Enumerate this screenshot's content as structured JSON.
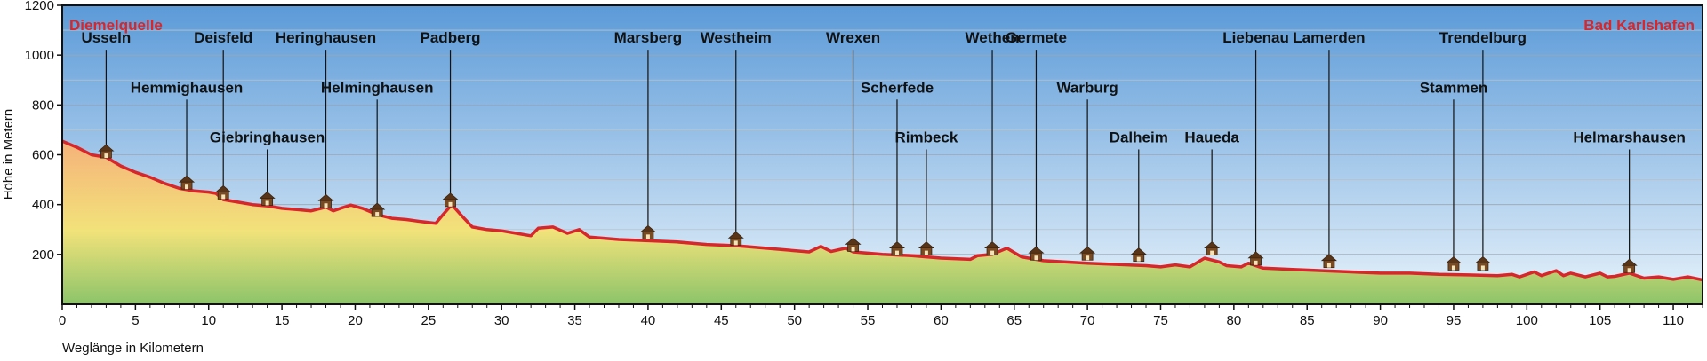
{
  "chart_data": {
    "type": "area",
    "xlabel": "Weglänge in Kilometern",
    "ylabel": "Höhe in Metern",
    "xlim": [
      0,
      112
    ],
    "ylim": [
      0,
      1200
    ],
    "x_ticks": [
      0,
      5,
      10,
      15,
      20,
      25,
      30,
      35,
      40,
      45,
      50,
      55,
      60,
      65,
      70,
      75,
      80,
      85,
      90,
      95,
      100,
      105,
      110
    ],
    "y_ticks": [
      200,
      400,
      600,
      800,
      1000,
      1200
    ],
    "grid": true,
    "start_label": "Diemelquelle",
    "end_label": "Bad Karlshafen",
    "colors": {
      "line": "#d8262b",
      "marker": "#7a4a22",
      "sky_top": "#5b9ad8",
      "sky_bottom": "#e8f3fb",
      "ground_top": "#f5b27a",
      "ground_mid": "#f2e27a",
      "ground_bottom": "#8cc46a"
    },
    "profile": [
      [
        0,
        655
      ],
      [
        1,
        630
      ],
      [
        2,
        600
      ],
      [
        3,
        590
      ],
      [
        4,
        555
      ],
      [
        5,
        530
      ],
      [
        6,
        510
      ],
      [
        7,
        485
      ],
      [
        8,
        465
      ],
      [
        9,
        455
      ],
      [
        10,
        450
      ],
      [
        10.5,
        445
      ],
      [
        11,
        420
      ],
      [
        12,
        410
      ],
      [
        13,
        400
      ],
      [
        14,
        395
      ],
      [
        15,
        385
      ],
      [
        16,
        380
      ],
      [
        17,
        375
      ],
      [
        18,
        390
      ],
      [
        18.5,
        375
      ],
      [
        19,
        385
      ],
      [
        19.7,
        398
      ],
      [
        20.5,
        385
      ],
      [
        21.5,
        360
      ],
      [
        22.5,
        345
      ],
      [
        23.5,
        340
      ],
      [
        24.5,
        332
      ],
      [
        25.5,
        325
      ],
      [
        26,
        360
      ],
      [
        26.6,
        400
      ],
      [
        27.2,
        360
      ],
      [
        28,
        310
      ],
      [
        29,
        300
      ],
      [
        30,
        295
      ],
      [
        31,
        285
      ],
      [
        32,
        275
      ],
      [
        32.5,
        305
      ],
      [
        33.5,
        310
      ],
      [
        34.5,
        285
      ],
      [
        35.3,
        300
      ],
      [
        36,
        270
      ],
      [
        38,
        260
      ],
      [
        40,
        255
      ],
      [
        42,
        250
      ],
      [
        44,
        240
      ],
      [
        46,
        235
      ],
      [
        48,
        225
      ],
      [
        50,
        215
      ],
      [
        51,
        210
      ],
      [
        51.8,
        232
      ],
      [
        52.5,
        212
      ],
      [
        53.5,
        225
      ],
      [
        54,
        210
      ],
      [
        56,
        200
      ],
      [
        58,
        195
      ],
      [
        60,
        185
      ],
      [
        62,
        180
      ],
      [
        62.5,
        195
      ],
      [
        63.5,
        200
      ],
      [
        64.5,
        225
      ],
      [
        65.5,
        190
      ],
      [
        67,
        175
      ],
      [
        70,
        165
      ],
      [
        72,
        160
      ],
      [
        74,
        155
      ],
      [
        75,
        150
      ],
      [
        76,
        158
      ],
      [
        77,
        150
      ],
      [
        78,
        185
      ],
      [
        79,
        170
      ],
      [
        79.5,
        155
      ],
      [
        80.5,
        150
      ],
      [
        81,
        165
      ],
      [
        82,
        145
      ],
      [
        84,
        140
      ],
      [
        86,
        135
      ],
      [
        88,
        130
      ],
      [
        90,
        125
      ],
      [
        92,
        125
      ],
      [
        94,
        120
      ],
      [
        96,
        118
      ],
      [
        98,
        115
      ],
      [
        99,
        120
      ],
      [
        99.5,
        110
      ],
      [
        100,
        120
      ],
      [
        100.5,
        130
      ],
      [
        101,
        115
      ],
      [
        101.5,
        125
      ],
      [
        102,
        135
      ],
      [
        102.5,
        115
      ],
      [
        103,
        125
      ],
      [
        104,
        110
      ],
      [
        105,
        125
      ],
      [
        105.5,
        110
      ],
      [
        106,
        112
      ],
      [
        107,
        125
      ],
      [
        108,
        105
      ],
      [
        109,
        110
      ],
      [
        110,
        100
      ],
      [
        111,
        110
      ],
      [
        112,
        98
      ]
    ],
    "places": [
      {
        "name": "Usseln",
        "km": 3,
        "alt": 605,
        "label_alt": 1050
      },
      {
        "name": "Hemmighausen",
        "km": 8.5,
        "alt": 480,
        "label_alt": 850
      },
      {
        "name": "Deisfeld",
        "km": 11,
        "alt": 440,
        "label_alt": 1050
      },
      {
        "name": "Giebringhausen",
        "km": 14,
        "alt": 415,
        "label_alt": 650
      },
      {
        "name": "Heringhausen",
        "km": 18,
        "alt": 405,
        "label_alt": 1050
      },
      {
        "name": "Helminghausen",
        "km": 21.5,
        "alt": 370,
        "label_alt": 850
      },
      {
        "name": "Padberg",
        "km": 26.5,
        "alt": 410,
        "label_alt": 1050
      },
      {
        "name": "Marsberg",
        "km": 40,
        "alt": 280,
        "label_alt": 1050
      },
      {
        "name": "Westheim",
        "km": 46,
        "alt": 255,
        "label_alt": 1050
      },
      {
        "name": "Wrexen",
        "km": 54,
        "alt": 230,
        "label_alt": 1050
      },
      {
        "name": "Scherfede",
        "km": 57,
        "alt": 215,
        "label_alt": 850
      },
      {
        "name": "Rimbeck",
        "km": 59,
        "alt": 215,
        "label_alt": 650
      },
      {
        "name": "Wethen",
        "km": 63.5,
        "alt": 215,
        "label_alt": 1050
      },
      {
        "name": "Germete",
        "km": 66.5,
        "alt": 195,
        "label_alt": 1050
      },
      {
        "name": "Warburg",
        "km": 70,
        "alt": 195,
        "label_alt": 850
      },
      {
        "name": "Dalheim",
        "km": 73.5,
        "alt": 190,
        "label_alt": 650
      },
      {
        "name": "Haueda",
        "km": 78.5,
        "alt": 215,
        "label_alt": 650
      },
      {
        "name": "Liebenau",
        "km": 81.5,
        "alt": 175,
        "label_alt": 1050
      },
      {
        "name": "Lamerden",
        "km": 86.5,
        "alt": 165,
        "label_alt": 1050
      },
      {
        "name": "Stammen",
        "km": 95,
        "alt": 155,
        "label_alt": 850
      },
      {
        "name": "Trendelburg",
        "km": 97,
        "alt": 155,
        "label_alt": 1050
      },
      {
        "name": "Helmarshausen",
        "km": 107,
        "alt": 145,
        "label_alt": 650
      }
    ]
  }
}
